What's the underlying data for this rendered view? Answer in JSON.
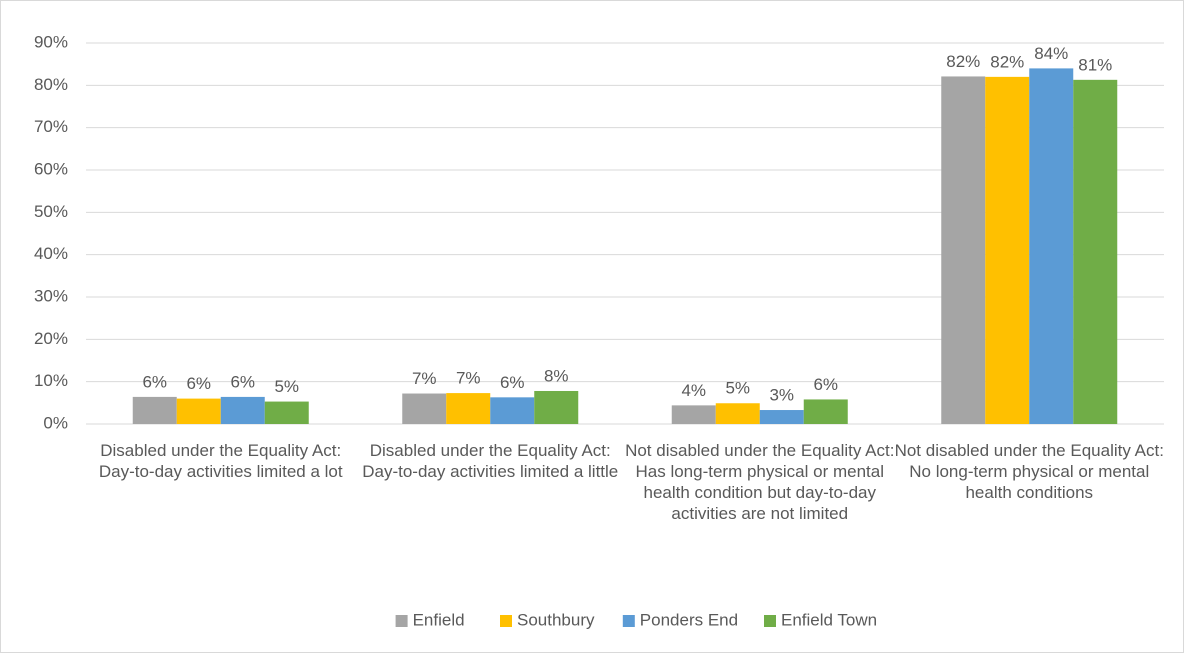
{
  "chart_data": {
    "type": "bar",
    "categories": [
      "Disabled under the Equality Act: Day-to-day activities limited a lot",
      "Disabled under the Equality Act: Day-to-day activities limited a little",
      "Not disabled under the Equality Act: Has long-term physical or mental health condition but day-to-day activities are not limited",
      "Not disabled under the Equality Act: No long-term physical or mental health conditions"
    ],
    "series": [
      {
        "name": "Enfield",
        "color": "#a5a5a5",
        "values": [
          6.4,
          7.2,
          4.4,
          82.1
        ],
        "value_labels": [
          "6%",
          "7%",
          "4%",
          "82%"
        ]
      },
      {
        "name": "Southbury",
        "color": "#ffc000",
        "values": [
          6.0,
          7.3,
          4.9,
          82.0
        ],
        "value_labels": [
          "6%",
          "7%",
          "5%",
          "82%"
        ]
      },
      {
        "name": "Ponders End",
        "color": "#5b9bd5",
        "values": [
          6.4,
          6.3,
          3.3,
          84.0
        ],
        "value_labels": [
          "6%",
          "6%",
          "3%",
          "84%"
        ]
      },
      {
        "name": "Enfield Town",
        "color": "#70ad47",
        "values": [
          5.3,
          7.8,
          5.8,
          81.3
        ],
        "value_labels": [
          "5%",
          "8%",
          "6%",
          "81%"
        ]
      }
    ],
    "ylim": [
      0,
      90
    ],
    "yticks": [
      {
        "value": 0,
        "label": "0%"
      },
      {
        "value": 10,
        "label": "10%"
      },
      {
        "value": 20,
        "label": "20%"
      },
      {
        "value": 30,
        "label": "30%"
      },
      {
        "value": 40,
        "label": "40%"
      },
      {
        "value": 50,
        "label": "50%"
      },
      {
        "value": 60,
        "label": "60%"
      },
      {
        "value": 70,
        "label": "70%"
      },
      {
        "value": 80,
        "label": "80%"
      },
      {
        "value": 90,
        "label": "90%"
      }
    ],
    "grid": true,
    "legend": "bottom"
  }
}
